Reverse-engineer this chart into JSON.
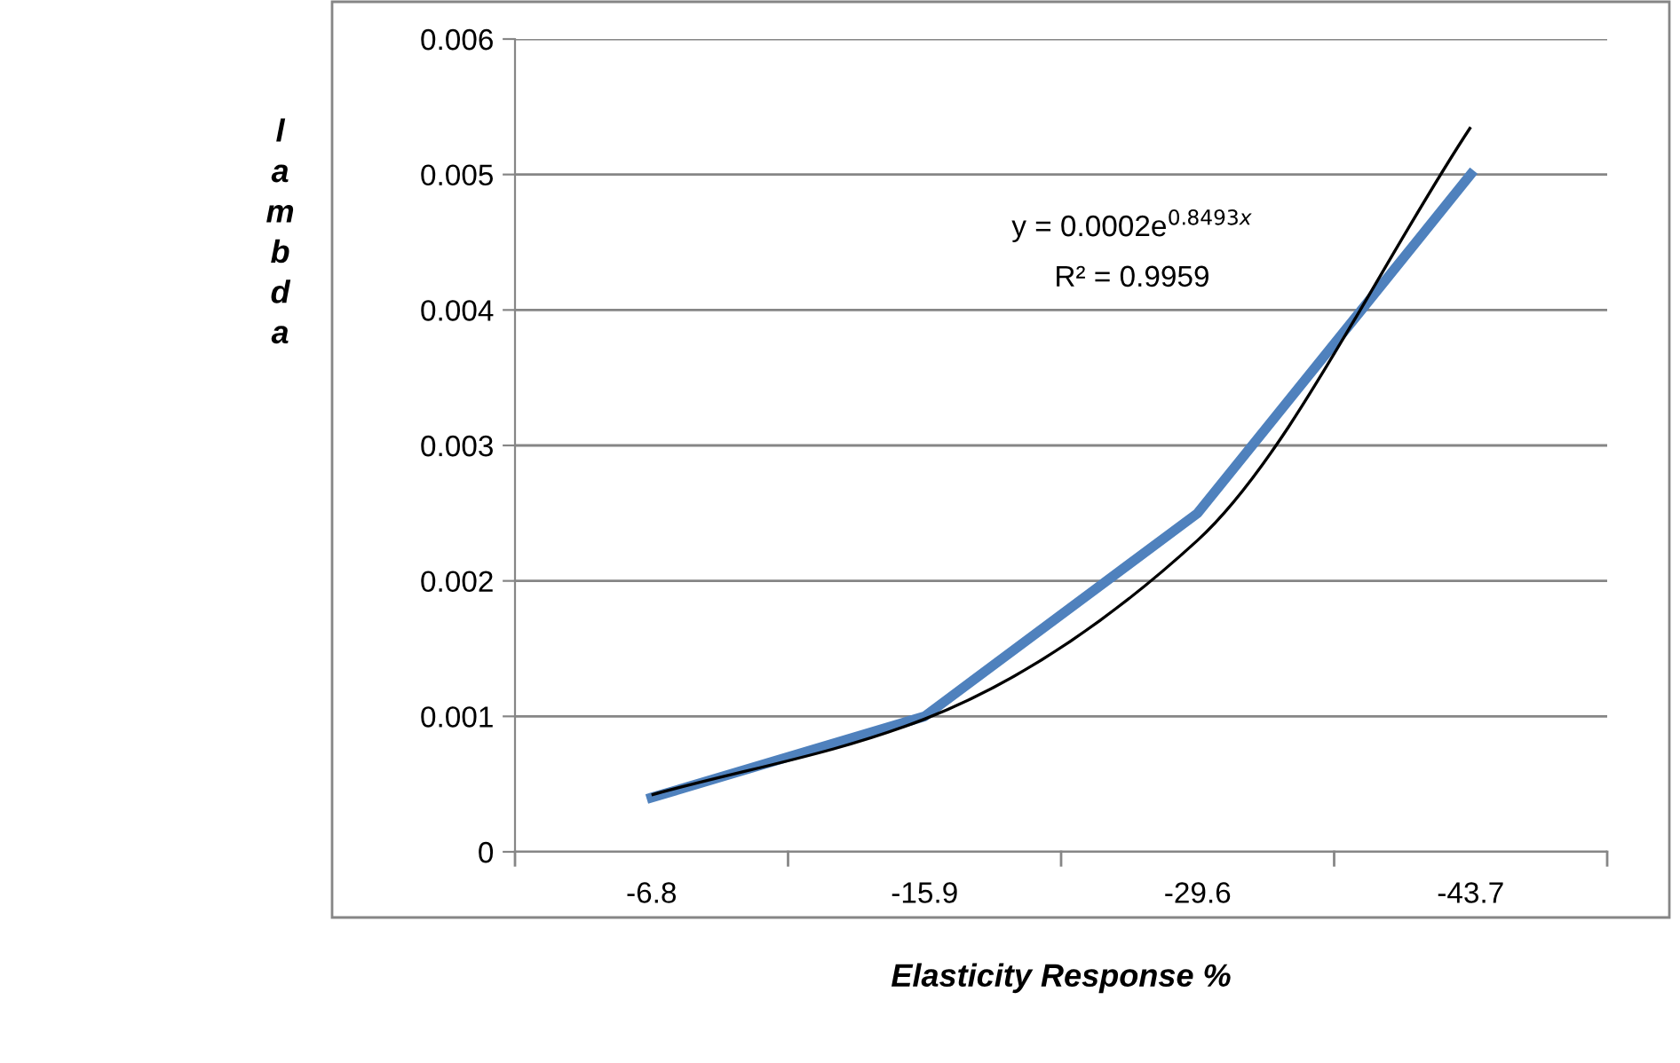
{
  "chart_data": {
    "type": "line",
    "xlabel": "Elasticity Response %",
    "ylabel": "lambda",
    "categories": [
      "-6.8",
      "-15.9",
      "-29.6",
      "-43.7"
    ],
    "series": [
      {
        "color": "#4f81bd",
        "values": [
          0.0004,
          0.001,
          0.0025,
          0.005
        ]
      },
      {
        "color": "#000000",
        "values": [
          0.00042,
          0.00098,
          0.0023,
          0.00535
        ]
      }
    ],
    "ylim": [
      0,
      0.006
    ],
    "yticks": [
      {
        "value": 0,
        "label": "0"
      },
      0.001,
      0.002,
      0.003,
      0.004,
      0.005,
      0.006
    ],
    "grid": "y",
    "annotations": [
      "y = 0.0002e$^{0.8493x}$",
      "R² = 0.9959"
    ]
  }
}
